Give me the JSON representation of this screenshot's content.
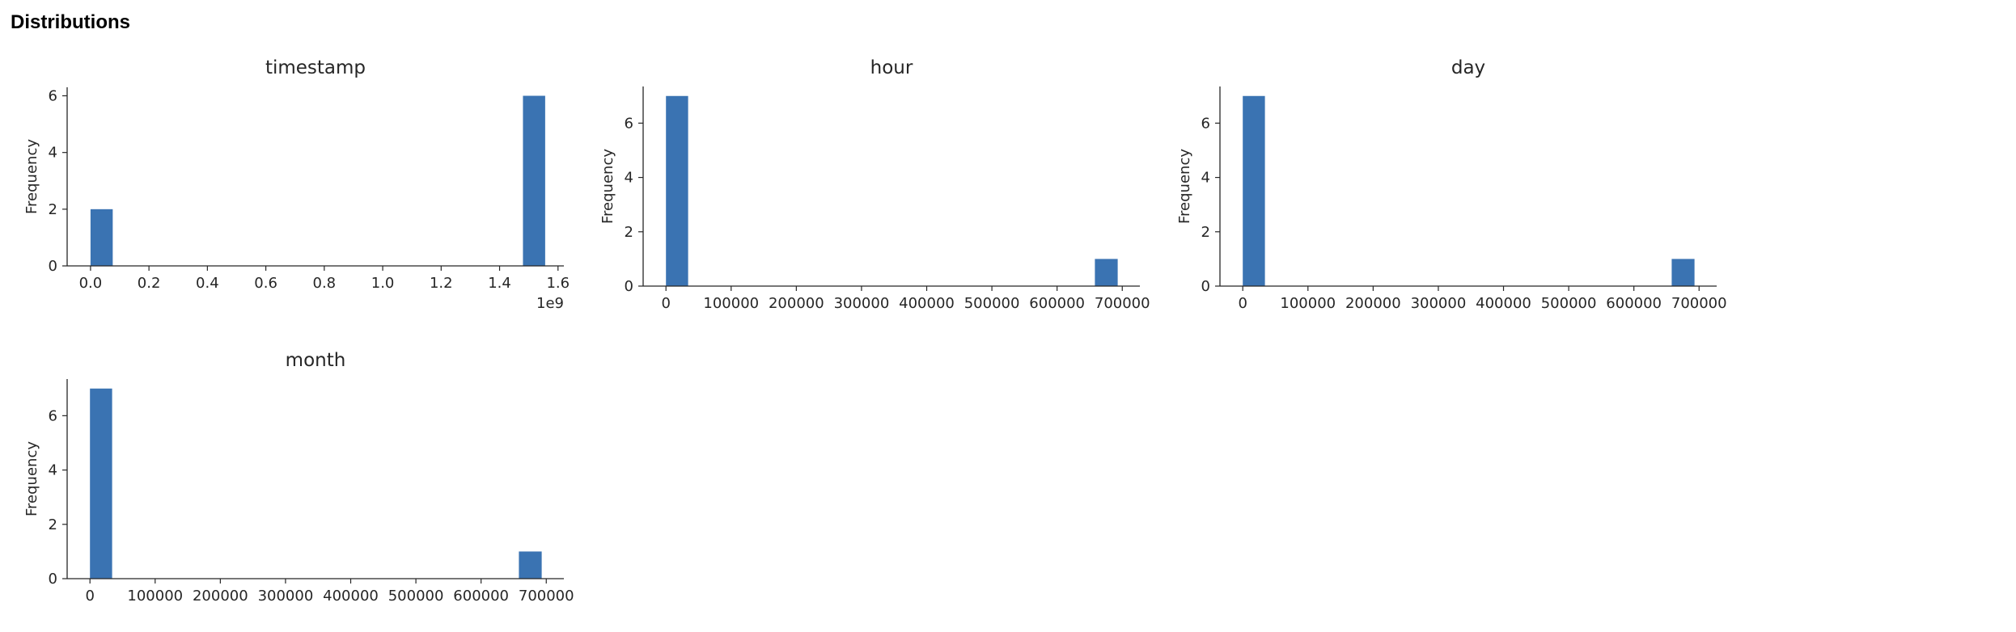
{
  "section": {
    "title": "Distributions"
  },
  "colors": {
    "bar": "#3a73b2",
    "axis": "#262626"
  },
  "chart_data": [
    {
      "type": "bar",
      "title": "timestamp",
      "xlabel": "",
      "ylabel": "Frequency",
      "x_offset_label": "1e9",
      "xlim": [
        -0.08,
        1.62
      ],
      "ylim": [
        0,
        6.3
      ],
      "xticks": [
        0.0,
        0.2,
        0.4,
        0.6,
        0.8,
        1.0,
        1.2,
        1.4,
        1.6
      ],
      "xtick_labels": [
        "0.0",
        "0.2",
        "0.4",
        "0.6",
        "0.8",
        "1.0",
        "1.2",
        "1.4",
        "1.6"
      ],
      "yticks": [
        0,
        2,
        4,
        6
      ],
      "ytick_labels": [
        "0",
        "2",
        "4",
        "6"
      ],
      "bins": [
        {
          "start": 0.0,
          "end": 0.076,
          "count": 2
        },
        {
          "start": 1.48,
          "end": 1.556,
          "count": 6
        }
      ]
    },
    {
      "type": "bar",
      "title": "hour",
      "xlabel": "",
      "ylabel": "Frequency",
      "xlim": [
        -35000,
        727000
      ],
      "ylim": [
        0,
        7.35
      ],
      "xticks": [
        0,
        100000,
        200000,
        300000,
        400000,
        500000,
        600000,
        700000
      ],
      "xtick_labels": [
        "0",
        "100000",
        "200000",
        "300000",
        "400000",
        "500000",
        "600000",
        "700000"
      ],
      "yticks": [
        0,
        2,
        4,
        6
      ],
      "ytick_labels": [
        "0",
        "2",
        "4",
        "6"
      ],
      "bins": [
        {
          "start": 0,
          "end": 34000,
          "count": 7
        },
        {
          "start": 658000,
          "end": 693000,
          "count": 1
        }
      ]
    },
    {
      "type": "bar",
      "title": "day",
      "xlabel": "",
      "ylabel": "Frequency",
      "xlim": [
        -35000,
        727000
      ],
      "ylim": [
        0,
        7.35
      ],
      "xticks": [
        0,
        100000,
        200000,
        300000,
        400000,
        500000,
        600000,
        700000
      ],
      "xtick_labels": [
        "0",
        "100000",
        "200000",
        "300000",
        "400000",
        "500000",
        "600000",
        "700000"
      ],
      "yticks": [
        0,
        2,
        4,
        6
      ],
      "ytick_labels": [
        "0",
        "2",
        "4",
        "6"
      ],
      "bins": [
        {
          "start": 0,
          "end": 34000,
          "count": 7
        },
        {
          "start": 658000,
          "end": 693000,
          "count": 1
        }
      ]
    },
    {
      "type": "bar",
      "title": "month",
      "xlabel": "",
      "ylabel": "Frequency",
      "xlim": [
        -35000,
        727000
      ],
      "ylim": [
        0,
        7.35
      ],
      "xticks": [
        0,
        100000,
        200000,
        300000,
        400000,
        500000,
        600000,
        700000
      ],
      "xtick_labels": [
        "0",
        "100000",
        "200000",
        "300000",
        "400000",
        "500000",
        "600000",
        "700000"
      ],
      "yticks": [
        0,
        2,
        4,
        6
      ],
      "ytick_labels": [
        "0",
        "2",
        "4",
        "6"
      ],
      "bins": [
        {
          "start": 0,
          "end": 34000,
          "count": 7
        },
        {
          "start": 658000,
          "end": 693000,
          "count": 1
        }
      ]
    }
  ]
}
